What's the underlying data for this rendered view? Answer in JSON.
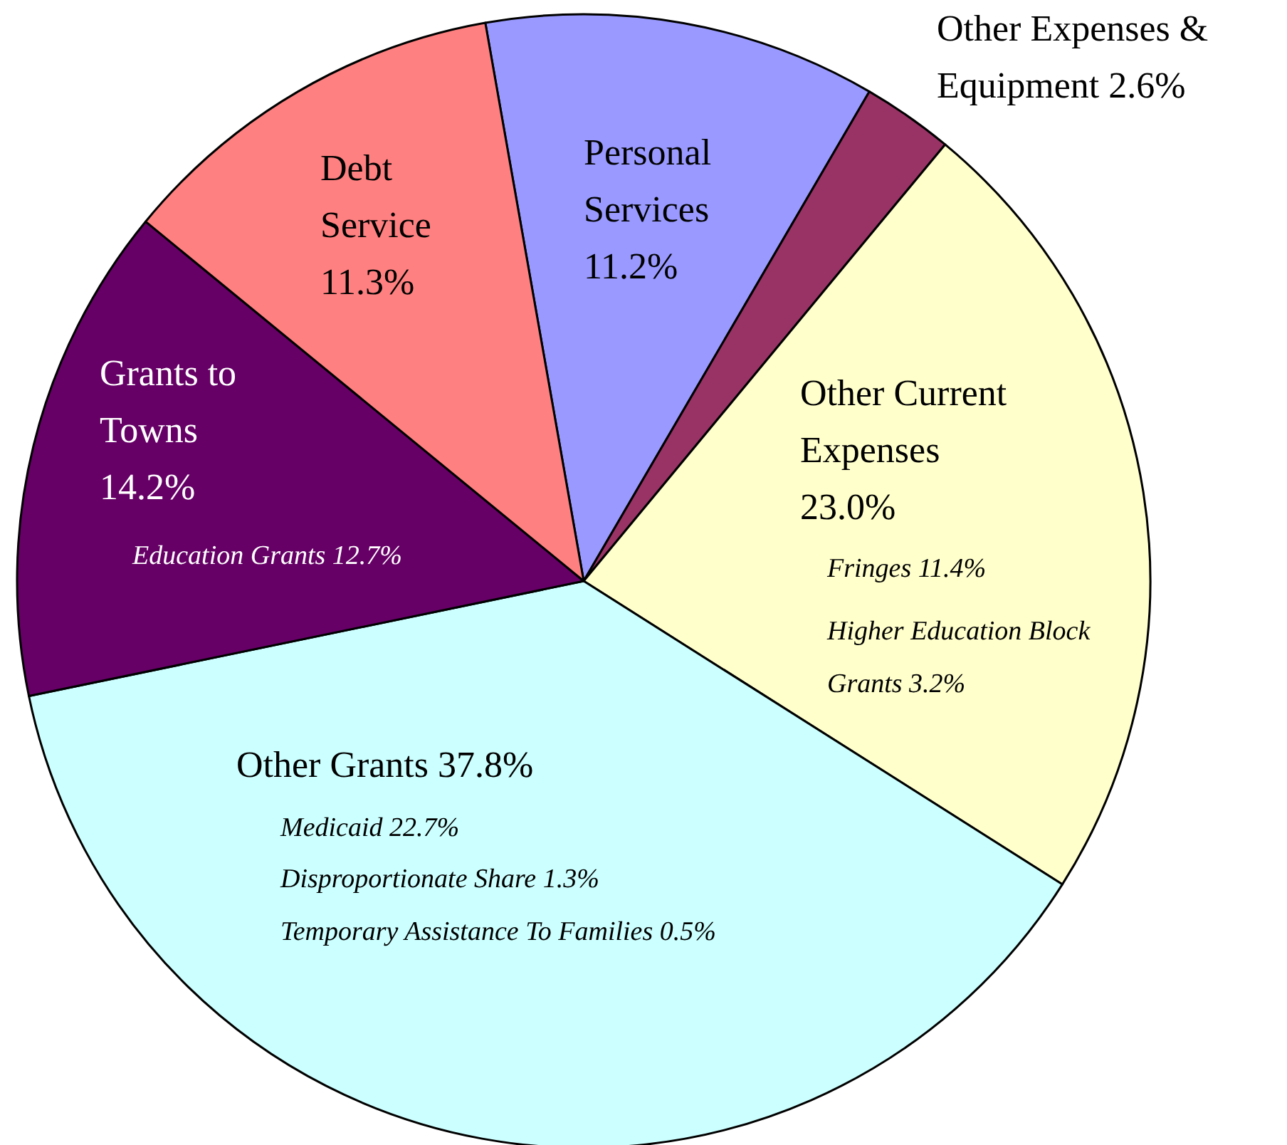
{
  "chart_data": {
    "type": "pie",
    "categories": [
      "Personal Services",
      "Other Expenses & Equipment",
      "Other Current Expenses",
      "Other Grants",
      "Grants to Towns",
      "Debt Service"
    ],
    "values": [
      11.2,
      2.6,
      23.0,
      37.8,
      14.2,
      11.3
    ],
    "colors": [
      "#9999ff",
      "#993366",
      "#ffffcc",
      "#ccffff",
      "#660066",
      "#ff8080"
    ],
    "value_labels": [
      "11.2%",
      "2.6%",
      "23.0%",
      "37.8%",
      "14.2%",
      "11.3%"
    ],
    "legend": false,
    "annotations": [
      "Education Grants 12.7%",
      "Fringes 11.4%",
      "Higher Education Block Grants 3.2%",
      "Medicaid 22.7%",
      "Disproportionate Share 1.3%",
      "Temporary Assistance To Families 0.5%"
    ]
  }
}
